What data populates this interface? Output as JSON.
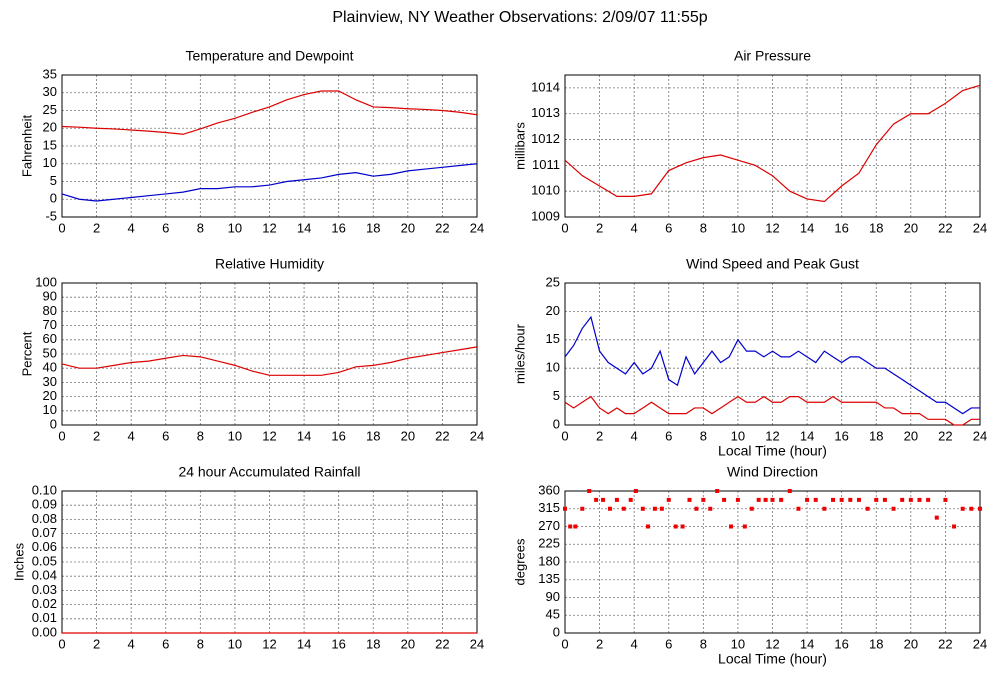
{
  "title": "Plainview, NY Weather Observations: 2/09/07 11:55p",
  "chart_data": [
    {
      "type": "line",
      "title": "Temperature and Dewpoint",
      "ylabel": "Fahrenheit",
      "grid": true,
      "x": [
        0,
        1,
        2,
        3,
        4,
        5,
        6,
        7,
        8,
        9,
        10,
        11,
        12,
        13,
        14,
        15,
        16,
        17,
        18,
        19,
        20,
        21,
        22,
        23,
        24
      ],
      "series": [
        {
          "color": "#dd0000",
          "values": [
            20.5,
            20.3,
            20,
            19.8,
            19.5,
            19.2,
            18.8,
            18.3,
            19.8,
            21.5,
            22.8,
            24.5,
            26,
            28,
            29.5,
            30.5,
            30.5,
            28,
            26,
            25.8,
            25.5,
            25.3,
            25,
            24.5,
            23.8
          ]
        },
        {
          "color": "#0000cc",
          "values": [
            1.5,
            0,
            -0.5,
            0,
            0.5,
            1,
            1.5,
            2,
            3,
            3,
            3.5,
            3.5,
            4,
            5,
            5.5,
            6,
            7,
            7.5,
            6.5,
            7,
            8,
            8.5,
            9,
            9.5,
            10
          ]
        }
      ],
      "xlim": [
        0,
        24
      ],
      "xticks": [
        0,
        2,
        4,
        6,
        8,
        10,
        12,
        14,
        16,
        18,
        20,
        22,
        24
      ],
      "ylim": [
        -5,
        35
      ],
      "yticks": [
        -5,
        0,
        5,
        10,
        15,
        20,
        25,
        30,
        35
      ]
    },
    {
      "type": "line",
      "title": "Air Pressure",
      "ylabel": "millibars",
      "grid": true,
      "x": [
        0,
        1,
        2,
        3,
        4,
        5,
        6,
        7,
        8,
        9,
        10,
        11,
        12,
        13,
        14,
        15,
        16,
        17,
        18,
        19,
        20,
        21,
        22,
        23,
        24
      ],
      "series": [
        {
          "color": "#dd0000",
          "values": [
            1011.2,
            1010.6,
            1010.2,
            1009.8,
            1009.8,
            1009.9,
            1010.8,
            1011.1,
            1011.3,
            1011.4,
            1011.2,
            1011,
            1010.6,
            1010,
            1009.7,
            1009.6,
            1010.2,
            1010.7,
            1011.8,
            1012.6,
            1013,
            1013,
            1013.4,
            1013.9,
            1014.1
          ]
        }
      ],
      "xlim": [
        0,
        24
      ],
      "xticks": [
        0,
        2,
        4,
        6,
        8,
        10,
        12,
        14,
        16,
        18,
        20,
        22,
        24
      ],
      "ylim": [
        1009,
        1014.5
      ],
      "yticks": [
        1009,
        1010,
        1011,
        1012,
        1013,
        1014
      ]
    },
    {
      "type": "line",
      "title": "Relative Humidity",
      "ylabel": "Percent",
      "grid": true,
      "x": [
        0,
        1,
        2,
        3,
        4,
        5,
        6,
        7,
        8,
        9,
        10,
        11,
        12,
        13,
        14,
        15,
        16,
        17,
        18,
        19,
        20,
        21,
        22,
        23,
        24
      ],
      "series": [
        {
          "color": "#dd0000",
          "values": [
            43,
            40,
            40,
            42,
            44,
            45,
            47,
            49,
            48,
            45,
            42,
            38,
            35,
            35,
            35,
            35,
            37,
            41,
            42,
            44,
            47,
            49,
            51,
            53,
            55
          ]
        }
      ],
      "xlim": [
        0,
        24
      ],
      "xticks": [
        0,
        2,
        4,
        6,
        8,
        10,
        12,
        14,
        16,
        18,
        20,
        22,
        24
      ],
      "ylim": [
        0,
        100
      ],
      "yticks": [
        0,
        10,
        20,
        30,
        40,
        50,
        60,
        70,
        80,
        90,
        100
      ]
    },
    {
      "type": "line",
      "title": "Wind Speed and Peak Gust",
      "ylabel": "miles/hour",
      "xlabel": "Local Time (hour)",
      "grid": true,
      "x": [
        0,
        0.5,
        1,
        1.5,
        2,
        2.5,
        3,
        3.5,
        4,
        4.5,
        5,
        5.5,
        6,
        6.5,
        7,
        7.5,
        8,
        8.5,
        9,
        9.5,
        10,
        10.5,
        11,
        11.5,
        12,
        12.5,
        13,
        13.5,
        14,
        14.5,
        15,
        15.5,
        16,
        16.5,
        17,
        17.5,
        18,
        18.5,
        19,
        19.5,
        20,
        20.5,
        21,
        21.5,
        22,
        22.5,
        23,
        23.5,
        24
      ],
      "series": [
        {
          "color": "#0000cc",
          "values": [
            12,
            14,
            17,
            19,
            13,
            11,
            10,
            9,
            11,
            9,
            10,
            13,
            8,
            7,
            12,
            9,
            11,
            13,
            11,
            12,
            15,
            13,
            13,
            12,
            13,
            12,
            12,
            13,
            12,
            11,
            13,
            12,
            11,
            12,
            12,
            11,
            10,
            10,
            9,
            8,
            7,
            6,
            5,
            4,
            4,
            3,
            2,
            3,
            3
          ]
        },
        {
          "color": "#dd0000",
          "values": [
            4,
            3,
            4,
            5,
            3,
            2,
            3,
            2,
            2,
            3,
            4,
            3,
            2,
            2,
            2,
            3,
            3,
            2,
            3,
            4,
            5,
            4,
            4,
            5,
            4,
            4,
            5,
            5,
            4,
            4,
            4,
            5,
            4,
            4,
            4,
            4,
            4,
            3,
            3,
            2,
            2,
            2,
            1,
            1,
            1,
            0,
            0,
            1,
            1
          ]
        }
      ],
      "xlim": [
        0,
        24
      ],
      "xticks": [
        0,
        2,
        4,
        6,
        8,
        10,
        12,
        14,
        16,
        18,
        20,
        22,
        24
      ],
      "ylim": [
        0,
        25
      ],
      "yticks": [
        0,
        5,
        10,
        15,
        20,
        25
      ]
    },
    {
      "type": "line",
      "title": "24 hour Accumulated Rainfall",
      "ylabel": "Inches",
      "grid": true,
      "x": [
        0,
        24
      ],
      "series": [
        {
          "color": "#dd0000",
          "values": [
            0,
            0
          ]
        }
      ],
      "xlim": [
        0,
        24
      ],
      "xticks": [
        0,
        2,
        4,
        6,
        8,
        10,
        12,
        14,
        16,
        18,
        20,
        22,
        24
      ],
      "ylim": [
        0,
        0.1
      ],
      "yticks": [
        {
          "value": 0,
          "label": "0.00"
        },
        {
          "value": 0.01,
          "label": "0.01"
        },
        {
          "value": 0.02,
          "label": "0.02"
        },
        {
          "value": 0.03,
          "label": "0.03"
        },
        {
          "value": 0.04,
          "label": "0.04"
        },
        {
          "value": 0.05,
          "label": "0.05"
        },
        {
          "value": 0.06,
          "label": "0.06"
        },
        {
          "value": 0.07,
          "label": "0.07"
        },
        {
          "value": 0.08,
          "label": "0.08"
        },
        {
          "value": 0.09,
          "label": "0.09"
        },
        {
          "value": 0.1,
          "label": "0.10"
        }
      ]
    },
    {
      "type": "scatter",
      "title": "Wind Direction",
      "ylabel": "degrees",
      "xlabel": "Local Time (hour)",
      "grid": true,
      "x": [
        0,
        0.3,
        0.6,
        1,
        1.4,
        1.8,
        2.2,
        2.6,
        3,
        3.4,
        3.8,
        4.1,
        4.5,
        4.8,
        5.2,
        5.6,
        6,
        6.4,
        6.8,
        7.2,
        7.6,
        8,
        8.4,
        8.8,
        9.2,
        9.6,
        10,
        10.4,
        10.8,
        11.2,
        11.6,
        12,
        12.5,
        13,
        13.5,
        14,
        14.5,
        15,
        15.5,
        16,
        16.5,
        17,
        17.5,
        18,
        18.5,
        19,
        19.5,
        20,
        20.5,
        21,
        21.5,
        22,
        22.5,
        23,
        23.5,
        24
      ],
      "series": [
        {
          "color": "#ee0000",
          "values": [
            315,
            270,
            270,
            315,
            360,
            337.5,
            337.5,
            315,
            337.5,
            315,
            337.5,
            360,
            315,
            270,
            315,
            315,
            337.5,
            270,
            270,
            337.5,
            315,
            337.5,
            315,
            360,
            337.5,
            270,
            337.5,
            270,
            315,
            337.5,
            337.5,
            337.5,
            337.5,
            360,
            315,
            337.5,
            337.5,
            315,
            337.5,
            337.5,
            337.5,
            337.5,
            315,
            337.5,
            337.5,
            315,
            337.5,
            337.5,
            337.5,
            337.5,
            292.5,
            337.5,
            270,
            315,
            315,
            315
          ]
        }
      ],
      "xlim": [
        0,
        24
      ],
      "xticks": [
        0,
        2,
        4,
        6,
        8,
        10,
        12,
        14,
        16,
        18,
        20,
        22,
        24
      ],
      "ylim": [
        0,
        360
      ],
      "yticks": [
        0,
        45,
        90,
        135,
        180,
        225,
        270,
        315,
        360
      ]
    }
  ]
}
